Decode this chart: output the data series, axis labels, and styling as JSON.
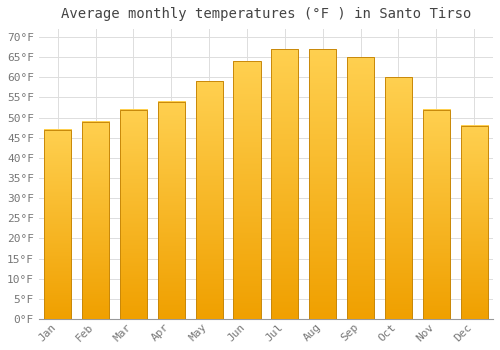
{
  "title": "Average monthly temperatures (°F ) in Santo Tirso",
  "months": [
    "Jan",
    "Feb",
    "Mar",
    "Apr",
    "May",
    "Jun",
    "Jul",
    "Aug",
    "Sep",
    "Oct",
    "Nov",
    "Dec"
  ],
  "values": [
    47,
    49,
    52,
    54,
    59,
    64,
    67,
    67,
    65,
    60,
    52,
    48
  ],
  "bar_color_bottom": "#F0A000",
  "bar_color_top": "#FFD050",
  "bar_edge_color": "#C8880A",
  "background_color": "#FFFFFF",
  "grid_color": "#DDDDDD",
  "text_color": "#777777",
  "title_color": "#444444",
  "ylim": [
    0,
    72
  ],
  "yticks": [
    0,
    5,
    10,
    15,
    20,
    25,
    30,
    35,
    40,
    45,
    50,
    55,
    60,
    65,
    70
  ],
  "title_fontsize": 10,
  "tick_fontsize": 8
}
